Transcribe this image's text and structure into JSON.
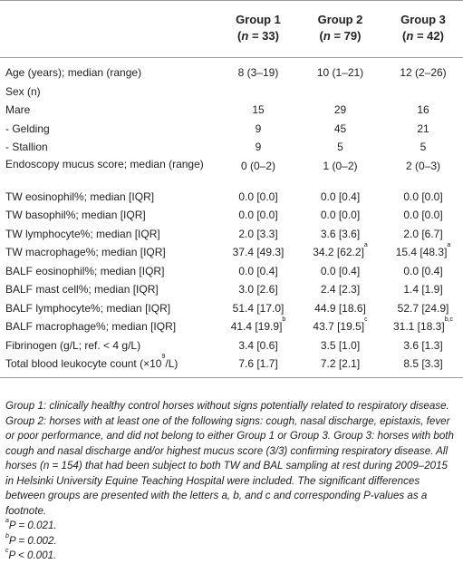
{
  "header": {
    "groups": [
      {
        "name": "Group 1",
        "n_prefix": "(",
        "n_label": "n",
        "n_value": " = 33)"
      },
      {
        "name": "Group 2",
        "n_prefix": "(",
        "n_label": "n",
        "n_value": " = 79)"
      },
      {
        "name": "Group 3",
        "n_prefix": "(",
        "n_label": "n",
        "n_value": " = 42)"
      }
    ]
  },
  "rows": [
    {
      "label": "Age (years); median (range)",
      "g1": "8 (3–19)",
      "g2": "10 (1–21)",
      "g3": "12 (2–26)"
    },
    {
      "label": "Sex (n)",
      "g1": "",
      "g2": "",
      "g3": ""
    },
    {
      "label": "Mare",
      "g1": "15",
      "g2": "29",
      "g3": "16"
    },
    {
      "label": "- Gelding",
      "g1": "9",
      "g2": "45",
      "g3": "21"
    },
    {
      "label": "- Stallion",
      "g1": "9",
      "g2": "5",
      "g3": "5"
    },
    {
      "label": "Endoscopy mucus score; median (range)",
      "g1": "0 (0–2)",
      "g2": "1 (0–2)",
      "g3": "2 (0–3)"
    },
    {
      "label": "TW eosinophil%; median [IQR]",
      "g1": "0.0 [0.0]",
      "g2": "0.0 [0.4]",
      "g3": "0.0 [0.0]"
    },
    {
      "label": "TW basophil%; median [IQR]",
      "g1": "0.0 [0.0]",
      "g2": "0.0 [0.0]",
      "g3": "0.0 [0.0]"
    },
    {
      "label": "TW lymphocyte%; median [IQR]",
      "g1": "2.0 [3.3]",
      "g2": "3.6 [3.6]",
      "g3": "2.0 [6.7]"
    },
    {
      "label": "TW macrophage%; median [IQR]",
      "g1": "37.4 [49.3]",
      "g2": "34.2 [62.2]",
      "g2_sup": "a",
      "g3": "15.4 [48.3]",
      "g3_sup": "a"
    },
    {
      "label": "BALF eosinophil%; median [IQR]",
      "g1": "0.0 [0.4]",
      "g2": "0.0 [0.4]",
      "g3": "0.0 [0.4]"
    },
    {
      "label": "BALF mast cell%; median [IQR]",
      "g1": "3.0 [2.6]",
      "g2": "2.4 [2.3]",
      "g3": "1.4 [1.9]"
    },
    {
      "label": "BALF lymphocyte%; median [IQR]",
      "g1": "51.4 [17.0]",
      "g2": "44.9 [18.6]",
      "g3": "52.7 [24.9]"
    },
    {
      "label": "BALF macrophage%; median [IQR]",
      "g1": "41.4 [19.9]",
      "g1_sup": "b",
      "g2": "43.7 [19.5]",
      "g2_sup": "c",
      "g3": "31.1 [18.3]",
      "g3_sup": "b,c"
    },
    {
      "label": "Fibrinogen (g/L; ref. < 4 g/L)",
      "g1": "3.4 [0.6]",
      "g2": "3.5 [1.0]",
      "g3": "3.6 [1.3]"
    },
    {
      "label_prefix": "Total blood leukocyte count (×10",
      "label_sup": "9",
      "label_suffix": "/L)",
      "g1": "7.6 [1.7]",
      "g2": "7.2 [2.1]",
      "g3": "8.5 [3.3]"
    }
  ],
  "footnote": {
    "text": "Group 1: clinically healthy control horses without signs potentially related to respiratory disease. Group 2: horses with at least one of the following signs: cough, nasal discharge, epistaxis, fever or poor performance, and did not belong to either Group 1 or Group 3. Group 3: horses with both cough and nasal discharge and/or highest mucus score (3/3) confirming respiratory disease. All horses (n = 154) that had been subject to both TW and BAL sampling at rest during 2009–2015 in Helsinki University Equine Teaching Hospital were included. The significant differences between groups are presented with the letters a, b, and c and corresponding P-values as a footnote.",
    "notes": [
      {
        "mark": "a",
        "text": "P = 0.021."
      },
      {
        "mark": "b",
        "text": "P = 0.002."
      },
      {
        "mark": "c",
        "text": "P < 0.001."
      }
    ]
  }
}
